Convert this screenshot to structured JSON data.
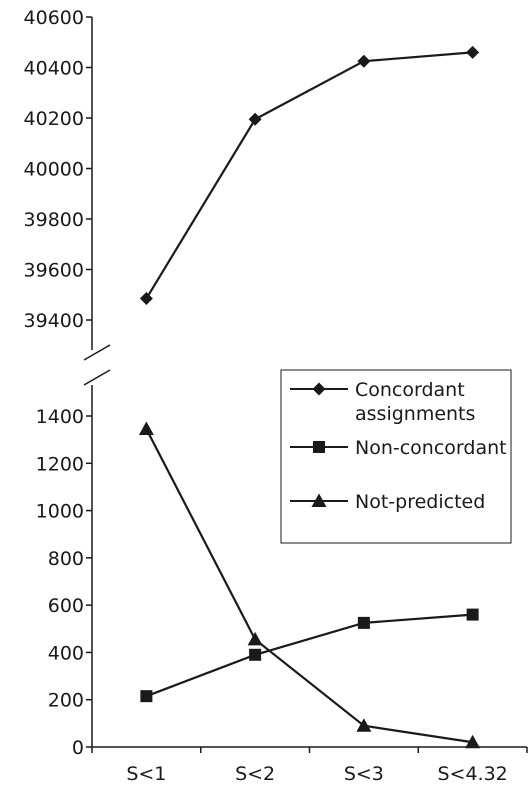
{
  "chart_data": {
    "type": "line",
    "title": "",
    "xlabel": "",
    "ylabel": "",
    "categories": [
      "S<1",
      "S<2",
      "S<3",
      "S<4.32"
    ],
    "y_axis_break": true,
    "y_upper_range": [
      39400,
      40600
    ],
    "y_upper_ticks": [
      "39400",
      "39600",
      "39800",
      "40000",
      "40200",
      "40400",
      "40600"
    ],
    "y_lower_range": [
      0,
      1400
    ],
    "y_lower_ticks": [
      "0",
      "200",
      "400",
      "600",
      "800",
      "1000",
      "1200",
      "1400"
    ],
    "grid": false,
    "legend_position": "right",
    "series": [
      {
        "name": "Concordant assignments",
        "legend_lines": [
          "Concordant",
          "assignments"
        ],
        "marker": "diamond",
        "values": [
          39485,
          40195,
          40425,
          40460
        ]
      },
      {
        "name": "Non-concordant",
        "legend_lines": [
          "Non-concordant"
        ],
        "marker": "square",
        "values": [
          215,
          390,
          525,
          560
        ]
      },
      {
        "name": "Not-predicted",
        "legend_lines": [
          "Not-predicted"
        ],
        "marker": "triangle",
        "values": [
          1345,
          455,
          90,
          20
        ]
      }
    ],
    "colors": {
      "line": "#1a1a1a",
      "background": "#ffffff"
    }
  }
}
